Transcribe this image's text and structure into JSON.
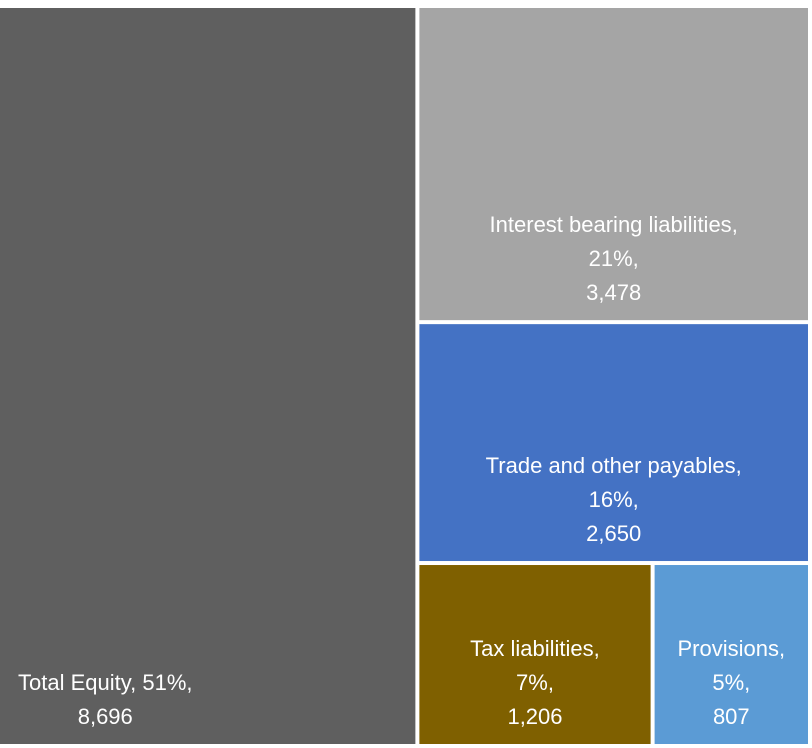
{
  "chart_data": {
    "type": "treemap",
    "categories": [
      "Total Equity",
      "Interest bearing liabilities",
      "Trade and other payables",
      "Tax liabilities",
      "Provisions"
    ],
    "values": [
      8696,
      3478,
      2650,
      1206,
      807
    ],
    "value_labels": [
      "8,696",
      "3,478",
      "2,650",
      "1,206",
      "807"
    ],
    "percents": [
      51,
      21,
      16,
      7,
      5
    ],
    "percent_labels": [
      "51%",
      "21%",
      "16%",
      "7%",
      "5%"
    ],
    "colors": [
      "#5f5f5f",
      "#a5a5a5",
      "#4472c4",
      "#7f6000",
      "#5b9bd5"
    ]
  }
}
